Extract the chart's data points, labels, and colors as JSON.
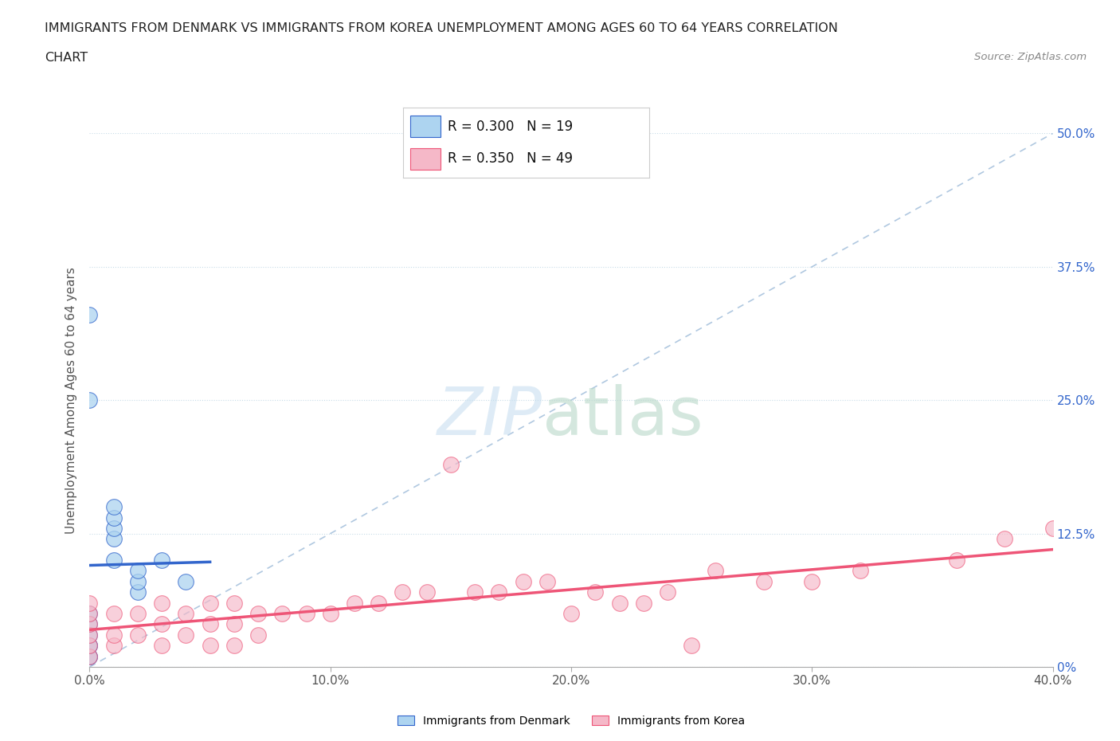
{
  "title_line1": "IMMIGRANTS FROM DENMARK VS IMMIGRANTS FROM KOREA UNEMPLOYMENT AMONG AGES 60 TO 64 YEARS CORRELATION",
  "title_line2": "CHART",
  "source_text": "Source: ZipAtlas.com",
  "ylabel": "Unemployment Among Ages 60 to 64 years",
  "legend_label_denmark": "Immigrants from Denmark",
  "legend_label_korea": "Immigrants from Korea",
  "denmark_R": 0.3,
  "denmark_N": 19,
  "korea_R": 0.35,
  "korea_N": 49,
  "denmark_color": "#add4f0",
  "korea_color": "#f5b8c8",
  "denmark_line_color": "#3366cc",
  "korea_line_color": "#ee5577",
  "xlim": [
    0.0,
    0.4
  ],
  "ylim": [
    0.0,
    0.5
  ],
  "xtick_values": [
    0.0,
    0.1,
    0.2,
    0.3,
    0.4
  ],
  "xtick_labels": [
    "0.0%",
    "10.0%",
    "20.0%",
    "30.0%",
    "40.0%"
  ],
  "ytick_values": [
    0.0,
    0.125,
    0.25,
    0.375,
    0.5
  ],
  "ytick_labels_right": [
    "0%",
    "12.5%",
    "25.0%",
    "37.5%",
    "50.0%"
  ],
  "denmark_x": [
    0.0,
    0.0,
    0.0,
    0.0,
    0.0,
    0.0,
    0.0,
    0.01,
    0.01,
    0.01,
    0.01,
    0.01,
    0.02,
    0.02,
    0.02,
    0.03,
    0.04,
    0.0,
    0.0
  ],
  "denmark_y": [
    0.01,
    0.01,
    0.02,
    0.02,
    0.03,
    0.04,
    0.05,
    0.1,
    0.12,
    0.13,
    0.14,
    0.15,
    0.07,
    0.08,
    0.09,
    0.1,
    0.08,
    0.25,
    0.33
  ],
  "korea_x": [
    0.0,
    0.0,
    0.0,
    0.0,
    0.0,
    0.0,
    0.01,
    0.01,
    0.01,
    0.02,
    0.02,
    0.03,
    0.03,
    0.03,
    0.04,
    0.04,
    0.05,
    0.05,
    0.05,
    0.06,
    0.06,
    0.06,
    0.07,
    0.07,
    0.08,
    0.09,
    0.1,
    0.11,
    0.12,
    0.13,
    0.14,
    0.15,
    0.16,
    0.17,
    0.18,
    0.19,
    0.2,
    0.21,
    0.22,
    0.23,
    0.24,
    0.25,
    0.26,
    0.28,
    0.3,
    0.32,
    0.36,
    0.38,
    0.4
  ],
  "korea_y": [
    0.01,
    0.02,
    0.03,
    0.04,
    0.05,
    0.06,
    0.02,
    0.03,
    0.05,
    0.03,
    0.05,
    0.02,
    0.04,
    0.06,
    0.03,
    0.05,
    0.02,
    0.04,
    0.06,
    0.02,
    0.04,
    0.06,
    0.03,
    0.05,
    0.05,
    0.05,
    0.05,
    0.06,
    0.06,
    0.07,
    0.07,
    0.19,
    0.07,
    0.07,
    0.08,
    0.08,
    0.05,
    0.07,
    0.06,
    0.06,
    0.07,
    0.02,
    0.09,
    0.08,
    0.08,
    0.09,
    0.1,
    0.12,
    0.13
  ]
}
